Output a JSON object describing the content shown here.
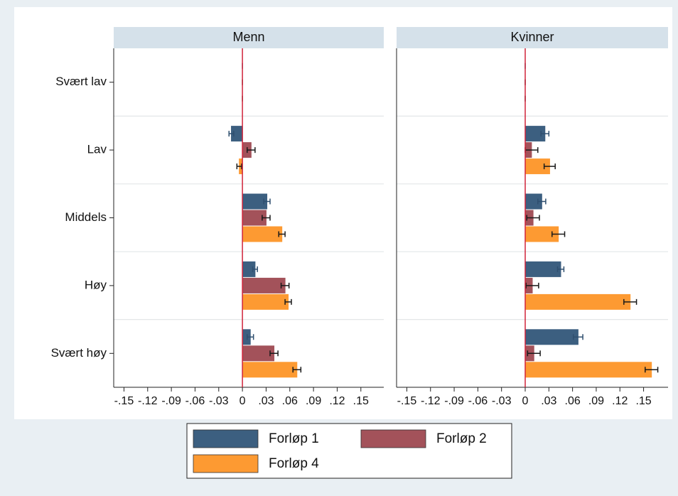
{
  "chart_data": [
    {
      "type": "bar",
      "orientation": "horizontal",
      "title": "Menn",
      "grid": true,
      "categories": [
        "Svært lav",
        "Lav",
        "Middels",
        "Høy",
        "Svært høy"
      ],
      "series": [
        {
          "name": "Forløp 1",
          "color": "#3c5f80",
          "values": [
            0,
            -0.014,
            0.031,
            0.016,
            0.01
          ],
          "errors": [
            0,
            0.003,
            0.004,
            0.003,
            0.004
          ]
        },
        {
          "name": "Forløp 2",
          "color": "#a3525a",
          "values": [
            0,
            0.011,
            0.03,
            0.054,
            0.04
          ],
          "errors": [
            0,
            0.005,
            0.005,
            0.005,
            0.005
          ]
        },
        {
          "name": "Forløp 4",
          "color": "#fd9a32",
          "values": [
            0,
            -0.004,
            0.05,
            0.058,
            0.069
          ],
          "errors": [
            0,
            0.003,
            0.004,
            0.004,
            0.005
          ]
        }
      ],
      "xlim": [
        -0.163,
        0.179
      ],
      "xticks": [
        {
          "value": -0.15,
          "label": "-.15"
        },
        {
          "value": -0.12,
          "label": "-.12"
        },
        {
          "value": -0.09,
          "label": "-.09"
        },
        {
          "value": -0.06,
          "label": "-.06"
        },
        {
          "value": -0.03,
          "label": "-.03"
        },
        0,
        {
          "value": 0.03,
          "label": ".03"
        },
        {
          "value": 0.06,
          "label": ".06"
        },
        {
          "value": 0.09,
          "label": ".09"
        },
        {
          "value": 0.12,
          "label": ".12"
        },
        {
          "value": 0.15,
          "label": ".15"
        }
      ]
    },
    {
      "type": "bar",
      "orientation": "horizontal",
      "title": "Kvinner",
      "grid": true,
      "series": [
        {
          "color": "#3c5f80",
          "values": [
            0,
            0.025,
            0.021,
            0.045,
            0.067
          ],
          "errors": [
            0,
            0.005,
            0.005,
            0.004,
            0.006
          ]
        },
        {
          "color": "#a3525a",
          "values": [
            0,
            0.008,
            0.01,
            0.009,
            0.011
          ],
          "errors": [
            0,
            0.008,
            0.008,
            0.008,
            0.008
          ]
        },
        {
          "color": "#fd9a32",
          "values": [
            0,
            0.031,
            0.042,
            0.133,
            0.16
          ],
          "errors": [
            0,
            0.007,
            0.008,
            0.008,
            0.008
          ]
        }
      ],
      "xlim": [
        -0.163,
        0.181
      ],
      "xticks": [
        {
          "value": -0.15,
          "label": "-.15"
        },
        {
          "value": -0.12,
          "label": "-.12"
        },
        {
          "value": -0.09,
          "label": "-.09"
        },
        {
          "value": -0.06,
          "label": "-.06"
        },
        {
          "value": -0.03,
          "label": "-.03"
        },
        0,
        {
          "value": 0.03,
          "label": ".03"
        },
        {
          "value": 0.06,
          "label": ".06"
        },
        {
          "value": 0.09,
          "label": ".09"
        },
        {
          "value": 0.12,
          "label": ".12"
        },
        {
          "value": 0.15,
          "label": ".15"
        }
      ]
    }
  ]
}
